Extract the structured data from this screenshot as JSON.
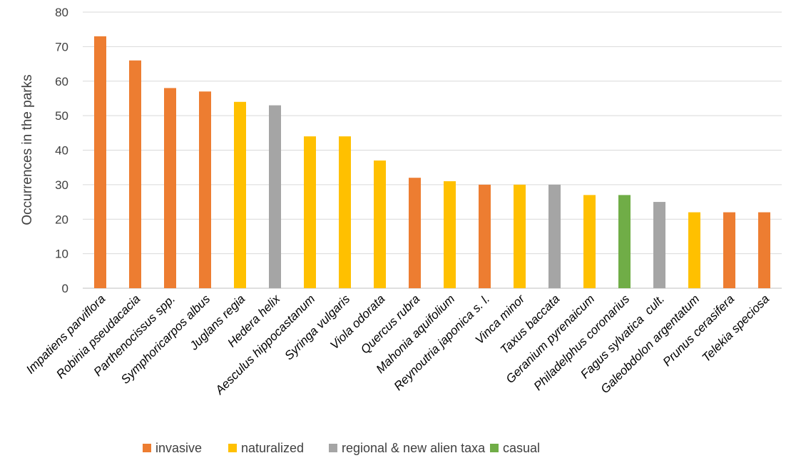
{
  "chart_data": {
    "type": "bar",
    "title": "",
    "xlabel": "",
    "ylabel": "Occurrences in the parks",
    "ylim": [
      0,
      80
    ],
    "yticks": [
      "0",
      "10",
      "20",
      "30",
      "40",
      "50",
      "60",
      "70",
      "80"
    ],
    "grid": true,
    "legend_position": "bottom",
    "categories": [
      "Impatiens parviflora",
      "Robinia pseudacacia",
      "Parthenocissus spp.",
      "Symphoricarpos albus",
      "Juglans regia",
      "Hedera helix",
      "Aesculus hippocastanum",
      "Syringa vulgaris",
      "Viola odorata",
      "Quercus rubra",
      "Mahonia aquifolium",
      "Reynoutria japonica s. l.",
      "Vinca minor",
      "Taxus baccata",
      "Geranium pyrenaicum",
      "Philadelphus coronarius",
      "Fagus sylvatica  cult.",
      "Galeobdolon argentatum",
      "Prunus cerasifera",
      "Telekia speciosa"
    ],
    "values": [
      73,
      66,
      58,
      57,
      54,
      53,
      44,
      44,
      37,
      32,
      31,
      30,
      30,
      30,
      27,
      27,
      25,
      22,
      22,
      22
    ],
    "groups": [
      "invasive",
      "invasive",
      "invasive",
      "invasive",
      "naturalized",
      "regional & new alien taxa",
      "naturalized",
      "naturalized",
      "naturalized",
      "invasive",
      "naturalized",
      "invasive",
      "naturalized",
      "regional & new alien taxa",
      "naturalized",
      "casual",
      "regional & new alien taxa",
      "naturalized",
      "invasive",
      "invasive"
    ],
    "legend": [
      {
        "name": "invasive",
        "color": "#ED7D31"
      },
      {
        "name": "naturalized",
        "color": "#FFC000"
      },
      {
        "name": "regional & new alien taxa",
        "color": "#A5A5A5"
      },
      {
        "name": "casual",
        "color": "#70AD47"
      }
    ]
  }
}
